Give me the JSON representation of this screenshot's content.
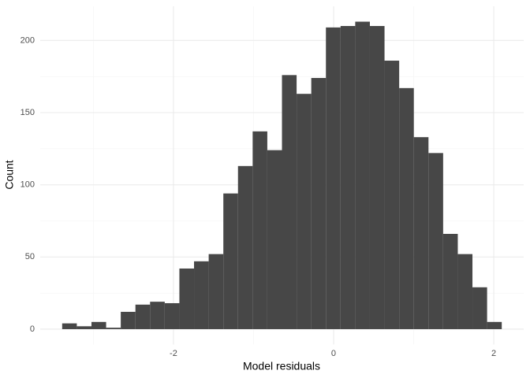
{
  "chart_data": {
    "type": "histogram",
    "x_label": "Model residuals",
    "y_label": "Count",
    "bins": [
      -3.39,
      -3.207,
      -3.024,
      -2.841,
      -2.658,
      -2.475,
      -2.292,
      -2.109,
      -1.926,
      -1.743,
      -1.56,
      -1.377,
      -1.194,
      -1.011,
      -0.828,
      -0.645,
      -0.462,
      -0.279,
      -0.096,
      0.087,
      0.27,
      0.453,
      0.636,
      0.819,
      1.002,
      1.185,
      1.368,
      1.551,
      1.734,
      1.917,
      2.1
    ],
    "values": [
      4,
      2,
      5,
      1,
      12,
      17,
      19,
      18,
      42,
      47,
      52,
      94,
      113,
      137,
      124,
      176,
      163,
      174,
      209,
      210,
      213,
      210,
      186,
      167,
      133,
      122,
      66,
      52,
      29,
      5
    ],
    "color": "#474747",
    "xlim": [
      -3.664,
      2.374
    ],
    "ylim": [
      -10.65,
      223.65
    ],
    "xticks": [
      -2,
      0,
      2
    ],
    "yticks": [
      0,
      50,
      100,
      150,
      200
    ],
    "x_minor_ticks": [
      -3,
      -1,
      1
    ],
    "y_minor_ticks": [
      25,
      75,
      125,
      175
    ],
    "grid": true
  }
}
